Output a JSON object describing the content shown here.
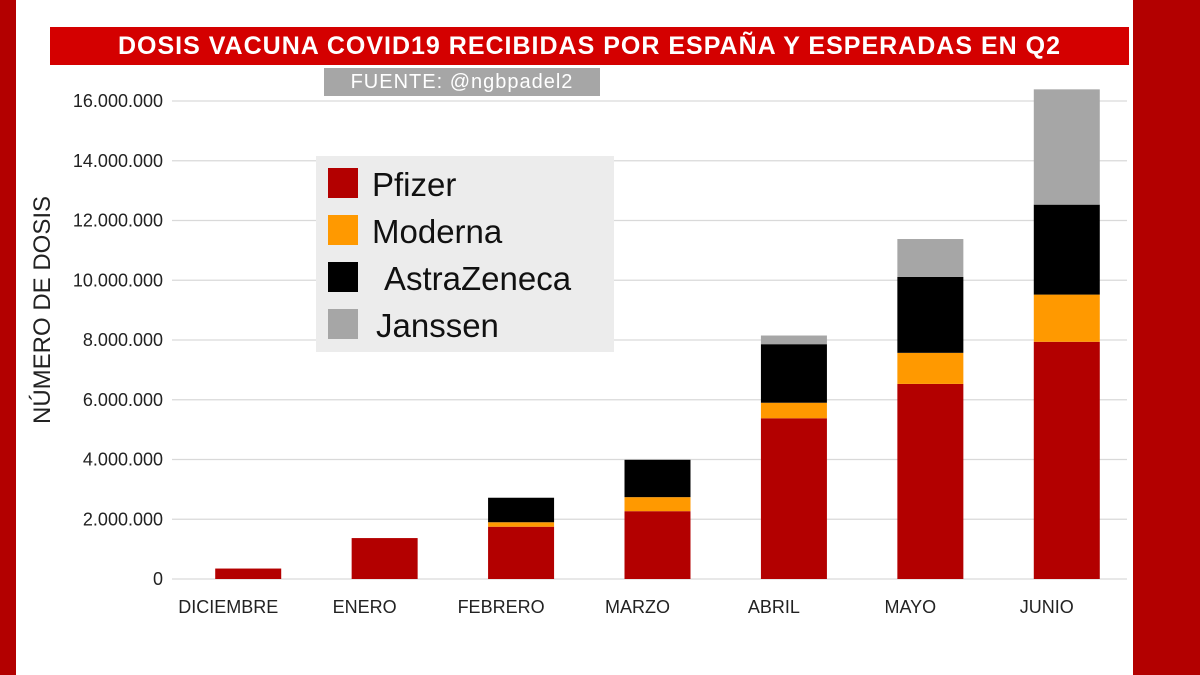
{
  "title": "DOSIS VACUNA COVID19 RECIBIDAS POR ESPAÑA Y ESPERADAS EN Q2",
  "source": "FUENTE:  @ngbpadel2",
  "colors": {
    "background": "#b30000",
    "title_bar": "#d40000",
    "source_bar": "#a6a6a6",
    "legend_bg": "#ececec",
    "grid": "#d9d9d9"
  },
  "chart_data": {
    "type": "bar",
    "stacked": true,
    "title": "DOSIS VACUNA COVID19 RECIBIDAS POR ESPAÑA Y ESPERADAS EN Q2",
    "ylabel": "NÚMERO DE DOSIS",
    "xlabel": "",
    "ylim": [
      0,
      16000000
    ],
    "yticks": [
      0,
      2000000,
      4000000,
      6000000,
      8000000,
      10000000,
      12000000,
      14000000,
      16000000
    ],
    "ytick_labels": [
      "0",
      "2.000.000",
      "4.000.000",
      "6.000.000",
      "8.000.000",
      "10.000.000",
      "12.000.000",
      "14.000.000",
      "16.000.000"
    ],
    "grid": true,
    "legend_position": "top-left",
    "categories": [
      "DICIEMBRE",
      "ENERO",
      "FEBRERO",
      "MARZO",
      "ABRIL",
      "MAYO",
      "JUNIO"
    ],
    "series": [
      {
        "name": "Pfizer",
        "color": "#b30000",
        "values": [
          350000,
          1370000,
          1750000,
          2270000,
          5380000,
          6530000,
          7940000
        ]
      },
      {
        "name": "Moderna",
        "color": "#ff9900",
        "values": [
          0,
          0,
          150000,
          470000,
          520000,
          1040000,
          1580000
        ]
      },
      {
        "name": "AstraZeneca",
        "color": "#000000",
        "values": [
          0,
          0,
          820000,
          1250000,
          1960000,
          2540000,
          3010000
        ]
      },
      {
        "name": "Janssen",
        "color": "#a6a6a6",
        "values": [
          0,
          0,
          0,
          0,
          290000,
          1270000,
          3860000
        ]
      }
    ]
  }
}
